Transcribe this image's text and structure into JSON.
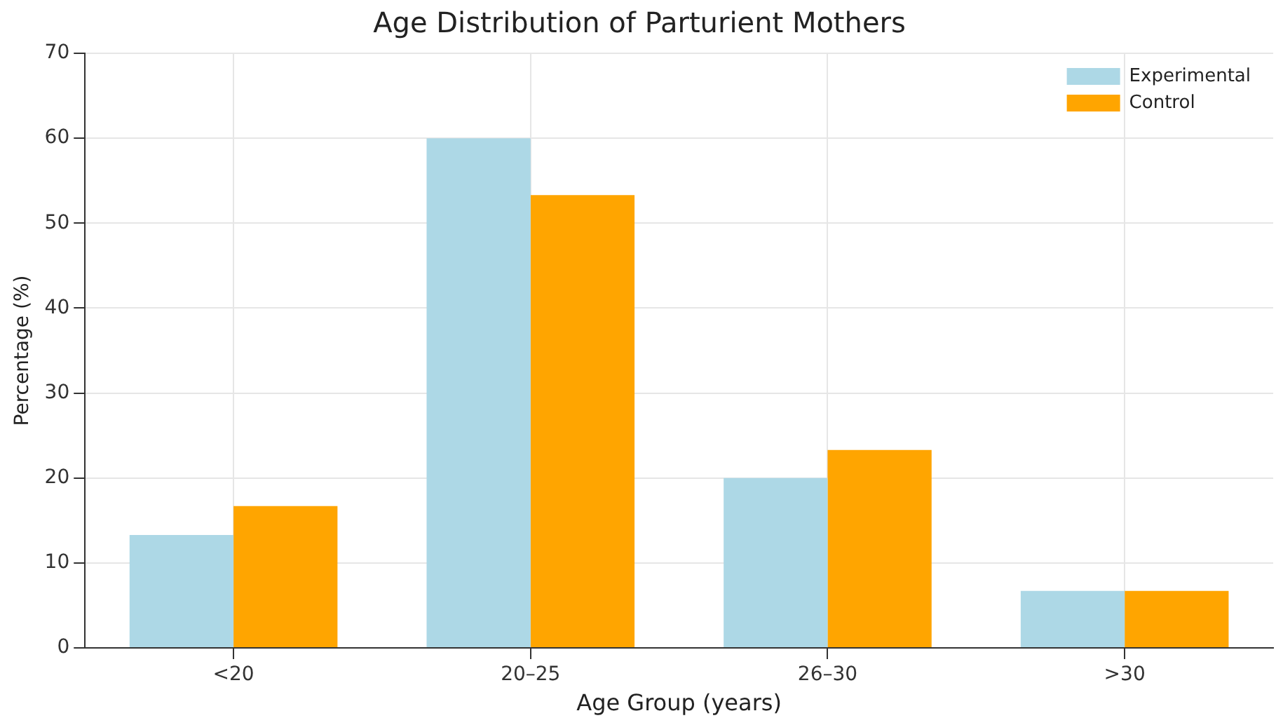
{
  "chart_data": {
    "type": "bar",
    "title": "Age Distribution of Parturient Mothers",
    "xlabel": "Age Group (years)",
    "ylabel": "Percentage (%)",
    "categories": [
      "<20",
      "20–25",
      "26–30",
      ">30"
    ],
    "series": [
      {
        "name": "Experimental",
        "color": "#add8e6",
        "values": [
          13.3,
          60,
          20,
          6.7
        ]
      },
      {
        "name": "Control",
        "color": "#ffa500",
        "values": [
          16.7,
          53.3,
          23.3,
          6.7
        ]
      }
    ],
    "ylim": [
      0,
      70
    ],
    "yticks": [
      0,
      10,
      20,
      30,
      40,
      50,
      60,
      70
    ],
    "grid": true,
    "legend": "top right"
  }
}
